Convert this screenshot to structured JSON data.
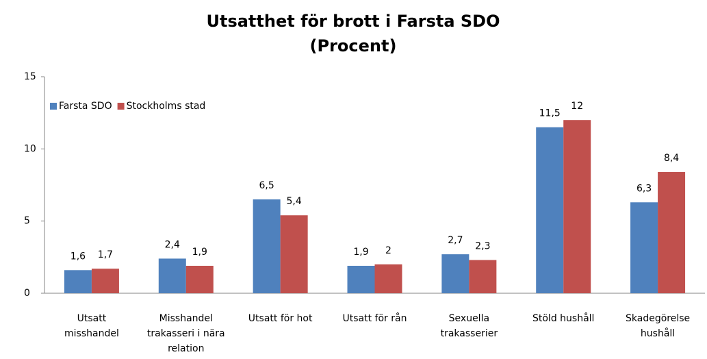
{
  "chart_data": {
    "type": "bar",
    "title": "Utsatthet för brott i Farsta SDO",
    "subtitle": "(Procent)",
    "categories": [
      [
        "Utsatt",
        "misshandel"
      ],
      [
        "Misshandel",
        "trakasseri i nära",
        "relation"
      ],
      [
        "Utsatt för hot"
      ],
      [
        "Utsatt för rån"
      ],
      [
        "Sexuella",
        "trakasserier"
      ],
      [
        "Stöld hushåll"
      ],
      [
        "Skadegörelse",
        "hushåll"
      ]
    ],
    "series": [
      {
        "name": "Farsta SDO",
        "color": "#4f81bd",
        "values": [
          1.6,
          2.4,
          6.5,
          1.9,
          2.7,
          11.5,
          6.3
        ],
        "value_labels": [
          "1,6",
          "2,4",
          "6,5",
          "1,9",
          "2,7",
          "11,5",
          "6,3"
        ]
      },
      {
        "name": "Stockholms stad",
        "color": "#c0504d",
        "values": [
          1.7,
          1.9,
          5.4,
          2,
          2.3,
          12,
          8.4
        ],
        "value_labels": [
          "1,7",
          "1,9",
          "5,4",
          "2",
          "2,3",
          "12",
          "8,4"
        ]
      }
    ],
    "ylim": [
      0,
      15
    ],
    "yticks": [
      0,
      5,
      10,
      15
    ],
    "grid": false,
    "legend": "top-left"
  }
}
